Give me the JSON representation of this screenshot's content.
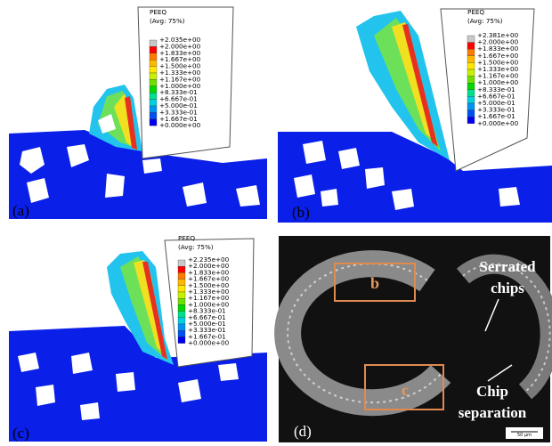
{
  "panels": [
    {
      "label": "(a)",
      "legend": {
        "title": "PEEQ",
        "subtitle": "(Avg: 75%)",
        "levels": [
          "+2.035e+00",
          "+2.000e+00",
          "+1.833e+00",
          "+1.667e+00",
          "+1.500e+00",
          "+1.333e+00",
          "+1.167e+00",
          "+1.000e+00",
          "+8.333e-01",
          "+6.667e-01",
          "+5.000e-01",
          "+3.333e-01",
          "+1.667e-01",
          "+0.000e+00"
        ]
      }
    },
    {
      "label": "(b)",
      "legend": {
        "title": "PEEQ",
        "subtitle": "(Avg: 75%)",
        "levels": [
          "+2.381e+00",
          "+2.000e+00",
          "+1.833e+00",
          "+1.667e+00",
          "+1.500e+00",
          "+1.333e+00",
          "+1.167e+00",
          "+1.000e+00",
          "+8.333e-01",
          "+6.667e-01",
          "+5.000e-01",
          "+3.333e-01",
          "+1.667e-01",
          "+0.000e+00"
        ]
      }
    },
    {
      "label": "(c)",
      "legend": {
        "title": "PEEQ",
        "subtitle": "(Avg: 75%)",
        "levels": [
          "+2.235e+00",
          "+2.000e+00",
          "+1.833e+00",
          "+1.667e+00",
          "+1.500e+00",
          "+1.333e+00",
          "+1.167e+00",
          "+1.000e+00",
          "+8.333e-01",
          "+6.667e-01",
          "+5.000e-01",
          "+3.333e-01",
          "+1.667e-01",
          "+0.000e+00"
        ]
      }
    },
    {
      "label": "(d)",
      "boxes": [
        "b",
        "c"
      ],
      "annotations": [
        {
          "lines": [
            "Serrated",
            "chips"
          ]
        },
        {
          "lines": [
            "Chip",
            "separation"
          ]
        }
      ],
      "scale_bar": "50 μm"
    }
  ]
}
